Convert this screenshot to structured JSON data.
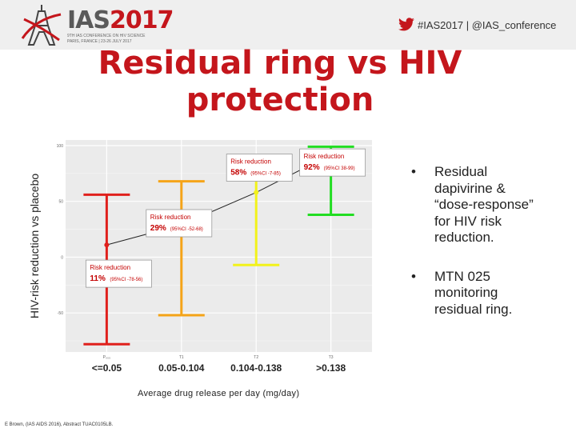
{
  "header": {
    "logo": {
      "main": "IAS",
      "year": "2017",
      "sub1": "9TH IAS CONFERENCE ON HIV SCIENCE",
      "sub2": "PARIS, FRANCE | 23-26 JULY 2017"
    },
    "hashtag": "#IAS2017 | @IAS_conference"
  },
  "title": {
    "line1": "Residual ring vs HIV",
    "line2": "protection"
  },
  "bullets": [
    {
      "marker": "•",
      "text_lines": [
        "Residual",
        "dapivirine &",
        "“dose-response”",
        "for HIV risk",
        "reduction."
      ]
    },
    {
      "marker": "•",
      "text_lines": [
        "MTN 025",
        "monitoring",
        "residual ring."
      ]
    }
  ],
  "citation": "E Brown, (IAS AIDS 2016), Abstract TUAC0105LB.",
  "chart_data": {
    "type": "scatter",
    "title": "",
    "xlabel": "Average drug release per day (mg/day)",
    "ylabel": "HIV-risk reduction vs placebo",
    "ylim": [
      -85,
      105
    ],
    "yticks": [
      100,
      50,
      0,
      -50
    ],
    "grid": true,
    "legend": "none",
    "categories": [
      "<=0.05",
      "0.05-0.104",
      "0.104-0.138",
      ">0.138"
    ],
    "small_tick_labels": [
      "P₀₀₅",
      "T1",
      "T2",
      "T3"
    ],
    "colors": [
      "#e0201c",
      "#f5a418",
      "#f2f21a",
      "#22dd22"
    ],
    "estimates": [
      11,
      29,
      58,
      92
    ],
    "ci_lower": [
      -78,
      -52,
      -7,
      38
    ],
    "ci_upper": [
      56,
      68,
      85,
      99
    ],
    "annotations": [
      {
        "label": "Risk reduction",
        "value": "11%",
        "ci": "(95%CI -78-56)"
      },
      {
        "label": "Risk reduction",
        "value": "29%",
        "ci": "(95%CI -52-68)"
      },
      {
        "label": "Risk reduction",
        "value": "58%",
        "ci": "(95%CI -7-85)"
      },
      {
        "label": "Risk reduction",
        "value": "92%",
        "ci": "(95%CI 38-99)"
      }
    ]
  }
}
